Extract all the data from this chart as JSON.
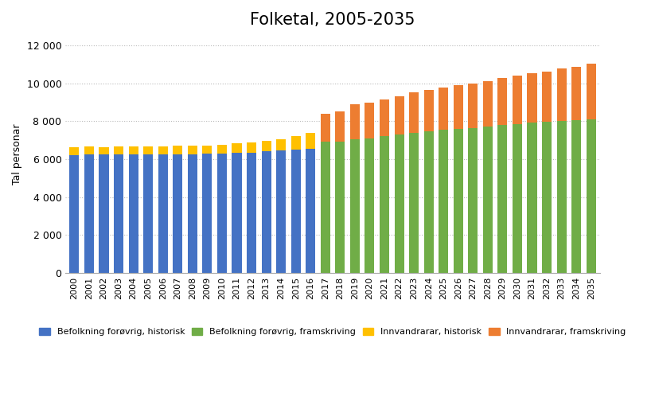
{
  "title": "Folketal, 2005-2035",
  "ylabel": "Tal personar",
  "years": [
    2000,
    2001,
    2002,
    2003,
    2004,
    2005,
    2006,
    2007,
    2008,
    2009,
    2010,
    2011,
    2012,
    2013,
    2014,
    2015,
    2016,
    2017,
    2018,
    2019,
    2020,
    2021,
    2022,
    2023,
    2024,
    2025,
    2026,
    2027,
    2028,
    2029,
    2030,
    2031,
    2032,
    2033,
    2034,
    2035
  ],
  "bef_historisk": [
    6220,
    6260,
    6240,
    6260,
    6250,
    6240,
    6240,
    6250,
    6250,
    6270,
    6270,
    6320,
    6350,
    6400,
    6450,
    6500,
    6560,
    0,
    0,
    0,
    0,
    0,
    0,
    0,
    0,
    0,
    0,
    0,
    0,
    0,
    0,
    0,
    0,
    0,
    0,
    0
  ],
  "bef_framskriving": [
    0,
    0,
    0,
    0,
    0,
    0,
    0,
    0,
    0,
    0,
    0,
    0,
    0,
    0,
    0,
    0,
    0,
    6900,
    6920,
    7050,
    7100,
    7200,
    7300,
    7400,
    7480,
    7550,
    7600,
    7650,
    7700,
    7780,
    7850,
    7920,
    7970,
    8010,
    8050,
    8090
  ],
  "innv_historisk": [
    390,
    400,
    400,
    420,
    430,
    430,
    430,
    440,
    450,
    430,
    470,
    500,
    530,
    560,
    600,
    700,
    820,
    0,
    0,
    0,
    0,
    0,
    0,
    0,
    0,
    0,
    0,
    0,
    0,
    0,
    0,
    0,
    0,
    0,
    0,
    0
  ],
  "innv_framskriving": [
    0,
    0,
    0,
    0,
    0,
    0,
    0,
    0,
    0,
    0,
    0,
    0,
    0,
    0,
    0,
    0,
    0,
    1500,
    1600,
    1850,
    1870,
    1950,
    2000,
    2100,
    2150,
    2200,
    2300,
    2350,
    2400,
    2500,
    2550,
    2600,
    2650,
    2750,
    2800,
    2950
  ],
  "color_bef_historisk": "#4472C4",
  "color_bef_framskriving": "#70AD47",
  "color_innv_historisk": "#FFC000",
  "color_innv_framskriving": "#ED7D31",
  "ylim": [
    0,
    12500
  ],
  "yticks": [
    0,
    2000,
    4000,
    6000,
    8000,
    10000,
    12000
  ],
  "ytick_labels": [
    "0",
    "2 000",
    "4 000",
    "6 000",
    "8 000",
    "10 000",
    "12 000"
  ],
  "legend_labels": [
    "Befolkning forøvrig, historisk",
    "Befolkning forøvrig, framskriving",
    "Innvandrarar, historisk",
    "Innvandrarar, framskriving"
  ],
  "background_color": "#ffffff",
  "bar_width": 0.65
}
